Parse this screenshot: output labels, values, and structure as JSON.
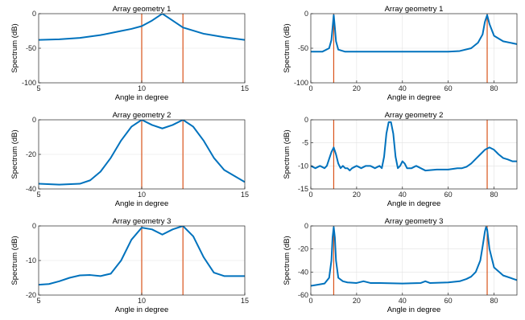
{
  "chart_data": [
    {
      "type": "line",
      "title": "Array geometry 1",
      "xlabel": "Angle in degree",
      "ylabel": "Spectrum (dB)",
      "xlim": [
        5,
        15
      ],
      "ylim": [
        -100,
        0
      ],
      "xticks": [
        5,
        10,
        15
      ],
      "yticks": [
        -100,
        -50,
        0
      ],
      "grid": true,
      "series": [
        {
          "color": "#0072BD",
          "x": [
            5,
            6,
            7,
            8,
            9,
            9.5,
            10,
            10.5,
            10.8,
            11,
            11.2,
            11.5,
            12,
            13,
            14,
            15
          ],
          "y": [
            -38,
            -37,
            -35,
            -31,
            -25,
            -22,
            -18,
            -10,
            -4,
            0,
            -4,
            -10,
            -20,
            -29,
            -34,
            -38
          ]
        }
      ],
      "vlines": {
        "color": "#D95319",
        "x": [
          10,
          12
        ]
      }
    },
    {
      "type": "line",
      "title": "Array geometry 1",
      "xlabel": "Angle in degree",
      "ylabel": "Spectrum (dB)",
      "xlim": [
        0,
        90
      ],
      "ylim": [
        -100,
        0
      ],
      "xticks": [
        0,
        20,
        40,
        60,
        80
      ],
      "yticks": [
        -100,
        -50,
        0
      ],
      "grid": true,
      "series": [
        {
          "color": "#0072BD",
          "x": [
            0,
            5,
            8,
            9,
            9.5,
            10,
            10.5,
            11,
            12,
            15,
            20,
            40,
            60,
            65,
            70,
            73,
            75,
            76,
            77,
            78,
            80,
            84,
            90
          ],
          "y": [
            -55,
            -55,
            -50,
            -38,
            -20,
            -2,
            -20,
            -40,
            -52,
            -55,
            -55,
            -55,
            -55,
            -54,
            -50,
            -42,
            -30,
            -12,
            -2,
            -15,
            -32,
            -40,
            -44
          ]
        }
      ],
      "vlines": {
        "color": "#D95319",
        "x": [
          10,
          77
        ]
      }
    },
    {
      "type": "line",
      "title": "Array geometry 2",
      "xlabel": "Angle in degree",
      "ylabel": "Spectrum (dB)",
      "xlim": [
        5,
        15
      ],
      "ylim": [
        -40,
        0
      ],
      "xticks": [
        5,
        10,
        15
      ],
      "yticks": [
        -40,
        -20,
        0
      ],
      "grid": true,
      "series": [
        {
          "color": "#0072BD",
          "x": [
            5,
            6,
            7,
            7.5,
            8,
            8.5,
            9,
            9.5,
            10,
            10.5,
            11,
            11.5,
            12,
            12.5,
            13,
            13.5,
            14,
            15
          ],
          "y": [
            -37,
            -37.5,
            -37,
            -35,
            -30,
            -22,
            -12,
            -4,
            0,
            -3,
            -5,
            -3,
            0,
            -4,
            -12,
            -22,
            -29,
            -36
          ]
        }
      ],
      "vlines": {
        "color": "#D95319",
        "x": [
          10,
          12
        ]
      }
    },
    {
      "type": "line",
      "title": "Array geometry 2",
      "xlabel": "Angle in degree",
      "ylabel": "Spectrum (dB)",
      "xlim": [
        0,
        90
      ],
      "ylim": [
        -15,
        0
      ],
      "xticks": [
        0,
        20,
        40,
        60,
        80
      ],
      "yticks": [
        -15,
        -10,
        -5,
        0
      ],
      "grid": true,
      "series": [
        {
          "color": "#0072BD",
          "x": [
            0,
            2,
            4,
            6,
            7,
            8,
            9,
            10,
            11,
            12,
            13,
            14,
            15,
            16,
            17,
            18,
            20,
            22,
            24,
            26,
            28,
            30,
            31,
            32,
            33,
            34,
            35,
            36,
            37,
            38,
            39,
            40,
            41,
            42,
            44,
            46,
            48,
            50,
            55,
            60,
            64,
            66,
            68,
            70,
            72,
            74,
            76,
            78,
            80,
            82,
            84,
            86,
            88,
            90
          ],
          "y": [
            -10,
            -10.5,
            -10,
            -10.5,
            -10,
            -8.5,
            -7,
            -6,
            -7.5,
            -9.5,
            -10.5,
            -10,
            -10.5,
            -10.5,
            -11,
            -10.5,
            -10,
            -10.5,
            -10,
            -10,
            -10.5,
            -10,
            -10.5,
            -8,
            -3,
            -0.5,
            -0.5,
            -3,
            -8,
            -10.5,
            -10,
            -9,
            -9.5,
            -10.5,
            -10.5,
            -10,
            -10.5,
            -11,
            -10.8,
            -10.8,
            -10.5,
            -10.5,
            -10.2,
            -9.5,
            -8.5,
            -7.5,
            -6.5,
            -6,
            -6.5,
            -7.5,
            -8.3,
            -8.6,
            -9,
            -9
          ]
        }
      ],
      "vlines": {
        "color": "#D95319",
        "x": [
          10,
          77
        ]
      }
    },
    {
      "type": "line",
      "title": "Array geometry 3",
      "xlabel": "Angle in degree",
      "ylabel": "Spectrum (dB)",
      "xlim": [
        5,
        15
      ],
      "ylim": [
        -20,
        0
      ],
      "xticks": [
        5,
        10,
        15
      ],
      "yticks": [
        -20,
        -10,
        0
      ],
      "grid": true,
      "series": [
        {
          "color": "#0072BD",
          "x": [
            5,
            5.5,
            6,
            6.5,
            7,
            7.5,
            8,
            8.5,
            9,
            9.5,
            10,
            10.5,
            11,
            11.5,
            12,
            12.5,
            13,
            13.5,
            14,
            14.5,
            15
          ],
          "y": [
            -17,
            -16.8,
            -16,
            -15,
            -14.3,
            -14.2,
            -14.5,
            -13.8,
            -10,
            -4,
            -0.5,
            -1,
            -2.5,
            -1,
            0,
            -3,
            -9,
            -13.5,
            -14.5,
            -14.5,
            -14.5
          ]
        }
      ],
      "vlines": {
        "color": "#D95319",
        "x": [
          10,
          12
        ]
      }
    },
    {
      "type": "line",
      "title": "Array geometry 3",
      "xlabel": "Angle in degree",
      "ylabel": "Spectrum (dB)",
      "xlim": [
        0,
        90
      ],
      "ylim": [
        -60,
        0
      ],
      "xticks": [
        0,
        20,
        40,
        60,
        80
      ],
      "yticks": [
        -60,
        -40,
        -20,
        0
      ],
      "grid": true,
      "series": [
        {
          "color": "#0072BD",
          "x": [
            0,
            3,
            6,
            8,
            9,
            9.5,
            10,
            10.5,
            11,
            12,
            14,
            16,
            20,
            23,
            26,
            30,
            40,
            48,
            50,
            52,
            60,
            65,
            68,
            70,
            72,
            74,
            75,
            76,
            76.5,
            77,
            78,
            80,
            84,
            90
          ],
          "y": [
            -52,
            -51,
            -50,
            -45,
            -30,
            -10,
            -1,
            -10,
            -30,
            -45,
            -48,
            -49,
            -49.5,
            -48,
            -49.5,
            -49.5,
            -50,
            -49.5,
            -48,
            -49.5,
            -49,
            -48,
            -46,
            -44,
            -40,
            -30,
            -18,
            -5,
            -1,
            -3,
            -20,
            -36,
            -43,
            -47
          ]
        }
      ],
      "vlines": {
        "color": "#D95319",
        "x": [
          10,
          77
        ]
      }
    }
  ]
}
